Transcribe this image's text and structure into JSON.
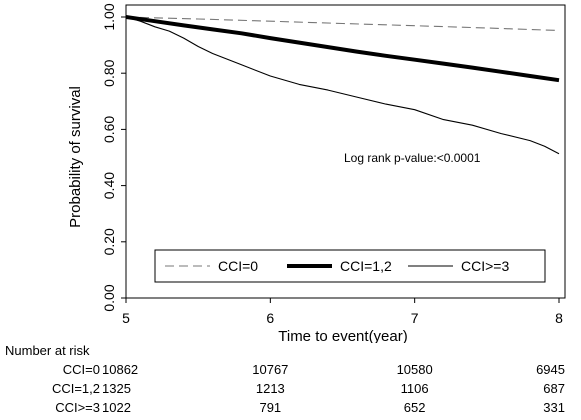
{
  "chart_data": {
    "type": "line",
    "title": "",
    "xlabel": "Time to event(year)",
    "ylabel": "Probability of survival",
    "xlim": [
      5,
      8
    ],
    "ylim": [
      0,
      1
    ],
    "x_ticks": [
      "5",
      "6",
      "7",
      "8"
    ],
    "y_ticks": [
      "0.00",
      "0.20",
      "0.40",
      "0.60",
      "0.80",
      "1.00"
    ],
    "grid": false,
    "legend_position": "bottom, inside plot area",
    "annotation": "Log rank p-value:<0.0001",
    "series": [
      {
        "name": "CCI=0",
        "line_style": "dashed",
        "x": [
          5.0,
          5.5,
          6.0,
          6.5,
          7.0,
          7.5,
          8.0
        ],
        "y": [
          1.0,
          0.993,
          0.985,
          0.977,
          0.969,
          0.961,
          0.952
        ]
      },
      {
        "name": "CCI=1,2",
        "line_style": "thick",
        "x": [
          5.0,
          5.2,
          5.4,
          5.6,
          5.8,
          6.0,
          6.2,
          6.4,
          6.6,
          6.8,
          7.0,
          7.2,
          7.4,
          7.6,
          7.8,
          8.0
        ],
        "y": [
          1.0,
          0.985,
          0.97,
          0.956,
          0.942,
          0.925,
          0.909,
          0.893,
          0.877,
          0.862,
          0.848,
          0.834,
          0.82,
          0.805,
          0.79,
          0.775
        ]
      },
      {
        "name": "CCI>=3",
        "line_style": "thin",
        "x": [
          5.0,
          5.1,
          5.2,
          5.3,
          5.4,
          5.5,
          5.6,
          5.8,
          6.0,
          6.2,
          6.4,
          6.6,
          6.8,
          7.0,
          7.2,
          7.4,
          7.6,
          7.8,
          7.9,
          8.0
        ],
        "y": [
          1.0,
          0.985,
          0.965,
          0.95,
          0.925,
          0.895,
          0.87,
          0.83,
          0.79,
          0.76,
          0.74,
          0.715,
          0.69,
          0.67,
          0.635,
          0.615,
          0.585,
          0.56,
          0.54,
          0.513
        ]
      }
    ]
  },
  "risk_table": {
    "header": "Number at risk",
    "rows": [
      {
        "label": "CCI=0",
        "values": [
          "10862",
          "10767",
          "10580",
          "6945"
        ]
      },
      {
        "label": "CCI=1,2",
        "values": [
          "1325",
          "1213",
          "1106",
          "687"
        ]
      },
      {
        "label": "CCI>=3",
        "values": [
          "1022",
          "791",
          "652",
          "331"
        ]
      }
    ]
  }
}
